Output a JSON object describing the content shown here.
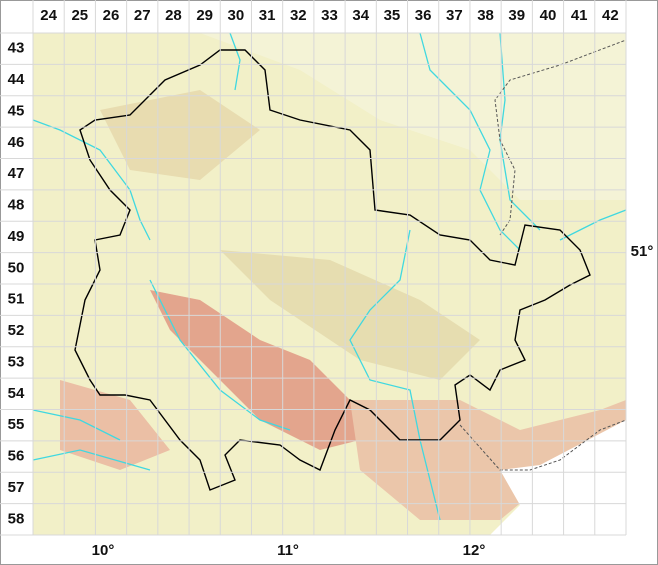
{
  "columns": [
    "24",
    "25",
    "26",
    "27",
    "28",
    "29",
    "30",
    "31",
    "32",
    "33",
    "34",
    "35",
    "36",
    "37",
    "38",
    "39",
    "40",
    "41",
    "42"
  ],
  "rows": [
    "43",
    "44",
    "45",
    "46",
    "47",
    "48",
    "49",
    "50",
    "51",
    "52",
    "53",
    "54",
    "55",
    "56",
    "57",
    "58"
  ],
  "longitude_labels": [
    "10°",
    "11°",
    "12°"
  ],
  "latitude_labels": [
    "51°"
  ]
}
